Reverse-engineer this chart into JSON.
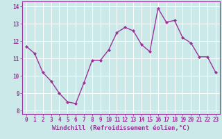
{
  "x": [
    0,
    1,
    2,
    3,
    4,
    5,
    6,
    7,
    8,
    9,
    10,
    11,
    12,
    13,
    14,
    15,
    16,
    17,
    18,
    19,
    20,
    21,
    22,
    23
  ],
  "y": [
    11.7,
    11.3,
    10.2,
    9.7,
    9.0,
    8.5,
    8.4,
    9.6,
    10.9,
    10.9,
    11.5,
    12.5,
    12.8,
    12.6,
    11.8,
    11.4,
    13.9,
    13.1,
    13.2,
    12.2,
    11.9,
    11.1,
    11.1,
    10.2
  ],
  "line_color": "#993399",
  "marker": "D",
  "marker_size": 2.0,
  "line_width": 1.0,
  "bg_color": "#cce9e9",
  "grid_color": "#ffffff",
  "tick_color": "#993399",
  "label_color": "#993399",
  "xlabel": "Windchill (Refroidissement éolien,°C)",
  "xlim": [
    -0.5,
    23.5
  ],
  "ylim": [
    7.8,
    14.3
  ],
  "yticks": [
    8,
    9,
    10,
    11,
    12,
    13,
    14
  ],
  "xticks": [
    0,
    1,
    2,
    3,
    4,
    5,
    6,
    7,
    8,
    9,
    10,
    11,
    12,
    13,
    14,
    15,
    16,
    17,
    18,
    19,
    20,
    21,
    22,
    23
  ],
  "tick_fontsize": 5.5,
  "xlabel_fontsize": 6.5
}
